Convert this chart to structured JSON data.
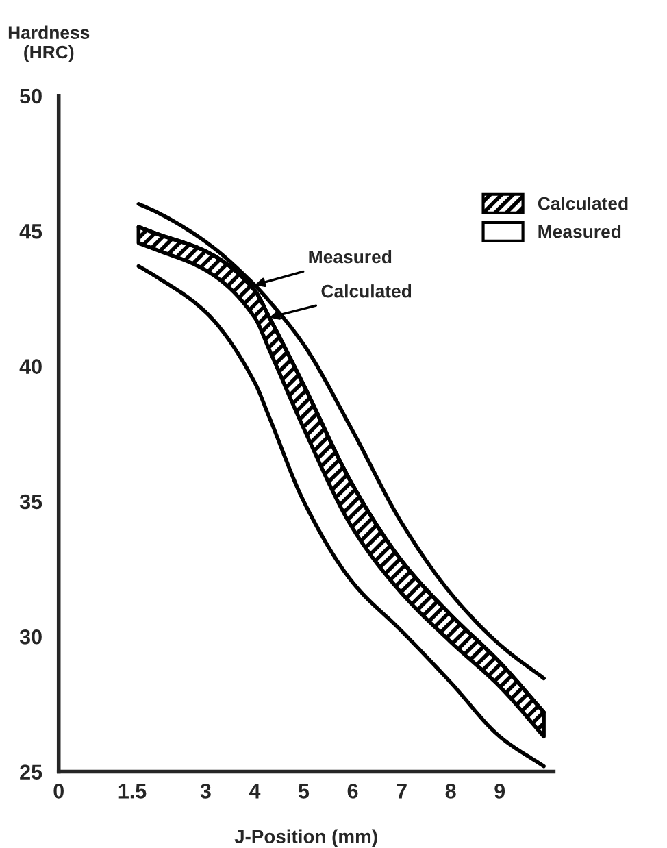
{
  "chart_data": {
    "type": "line",
    "xlabel": "J-Position (mm)",
    "ylabel": "Hardness\n(HRC)",
    "x": [
      1.63,
      2,
      3,
      4,
      4.3,
      5,
      6,
      7,
      8,
      9,
      9.9
    ],
    "series": [
      {
        "name": "Calculated",
        "color": "#000000",
        "values": [
          45.15,
          44.9,
          44.25,
          42.8,
          41.8,
          39.3,
          35.6,
          32.8,
          30.8,
          29.05,
          27.2
        ],
        "upper": [
          45.15,
          44.9,
          44.25,
          42.8,
          41.8,
          39.3,
          35.6,
          32.8,
          30.8,
          29.05,
          27.2
        ],
        "lower": [
          44.55,
          44.3,
          43.55,
          41.8,
          40.6,
          37.7,
          34.0,
          31.6,
          29.8,
          28.15,
          26.3
        ]
      },
      {
        "name": "Measured",
        "color": "#000000",
        "values": [
          46.0,
          45.7,
          44.6,
          43.0,
          42.4,
          40.8,
          37.6,
          34.2,
          31.6,
          29.7,
          28.45
        ]
      },
      {
        "color": "#000000",
        "values": [
          43.7,
          43.3,
          42.0,
          39.4,
          38.1,
          35.0,
          32.0,
          30.2,
          28.3,
          26.3,
          25.2
        ]
      }
    ],
    "annotations": [
      {
        "text": "Measured",
        "x": 4.0,
        "y": 43.0
      },
      {
        "text": "Calculated",
        "x": 4.3,
        "y": 41.8
      }
    ],
    "xlim": [
      0,
      10.1
    ],
    "ylim": [
      25,
      50
    ],
    "xticks": [
      0,
      1.5,
      3,
      4,
      5,
      6,
      7,
      8,
      9
    ],
    "yticks": [
      25,
      30,
      35,
      40,
      45,
      50
    ],
    "legend": "top right",
    "grid": false
  }
}
